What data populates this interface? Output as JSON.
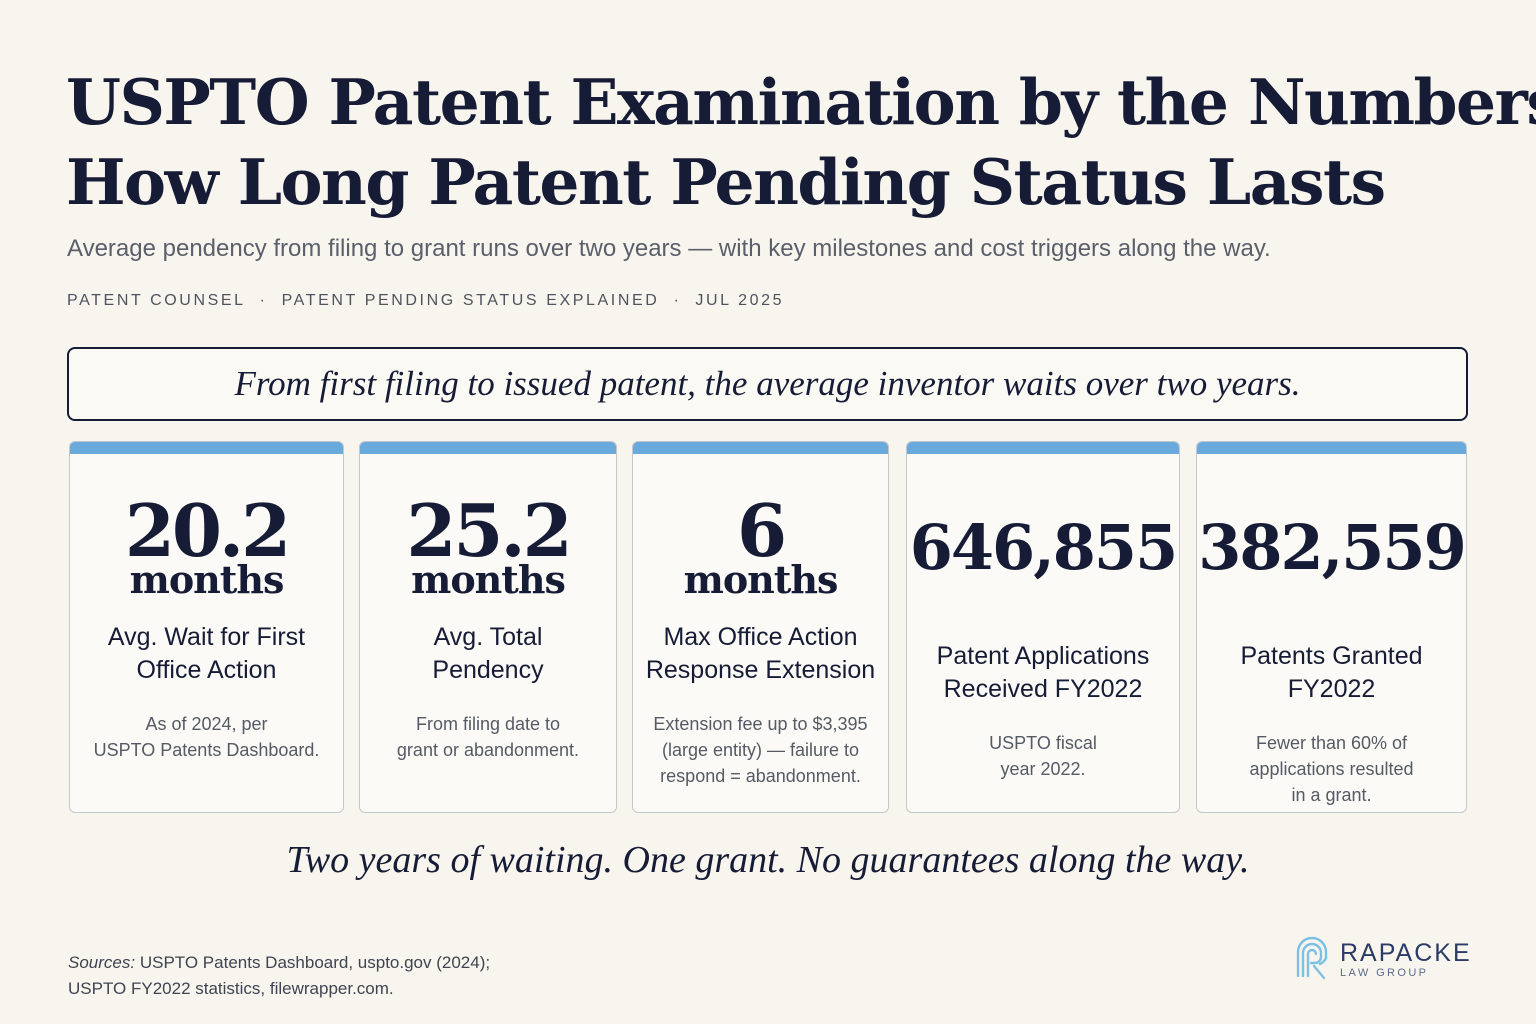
{
  "header": {
    "title_line1": "USPTO Patent Examination by the Numbers:",
    "title_line2": "How Long Patent Pending Status Lasts",
    "subtitle": "Average pendency from filing to grant runs over two years — with key milestones and cost triggers along the way.",
    "meta": [
      "PATENT COUNSEL",
      "PATENT PENDING STATUS EXPLAINED",
      "JUL 2025"
    ],
    "meta_separator": "·"
  },
  "callout": "From first filing to issued patent, the average inventor waits over two years.",
  "stats": [
    {
      "value": "20.2",
      "unit": "months",
      "label": [
        "Avg. Wait for First",
        "Office Action"
      ],
      "note": [
        "As of 2024, per",
        "USPTO Patents Dashboard."
      ]
    },
    {
      "value": "25.2",
      "unit": "months",
      "label": [
        "Avg. Total",
        "Pendency"
      ],
      "note": [
        "From filing date to",
        "grant or abandonment."
      ]
    },
    {
      "value": "6",
      "unit": "months",
      "label": [
        "Max Office Action",
        "Response Extension"
      ],
      "note": [
        "Extension fee up to $3,395",
        "(large entity) — failure to",
        "respond = abandonment."
      ]
    },
    {
      "value": "646,855",
      "unit": "",
      "label": [
        "Patent Applications",
        "Received FY2022"
      ],
      "note": [
        "USPTO fiscal",
        "year 2022."
      ]
    },
    {
      "value": "382,559",
      "unit": "",
      "label": [
        "Patents Granted",
        "FY2022"
      ],
      "note": [
        "Fewer than 60% of",
        "applications resulted",
        "in a grant."
      ]
    }
  ],
  "tagline": "Two years of waiting. One grant.  No guarantees along the way.",
  "sources": {
    "prefix": "Sources:",
    "line1": "USPTO Patents Dashboard, uspto.gov (2024);",
    "line2": "USPTO FY2022 statistics, filewrapper.com."
  },
  "logo": {
    "name": "RAPACKE",
    "sub": "LAW GROUP",
    "icon": "rapacke-logo-mark"
  },
  "colors": {
    "background": "#f8f5ee",
    "ink": "#161b36",
    "accent_bar": "#6aa9dc",
    "logo_mark": "#7cc0e4"
  }
}
